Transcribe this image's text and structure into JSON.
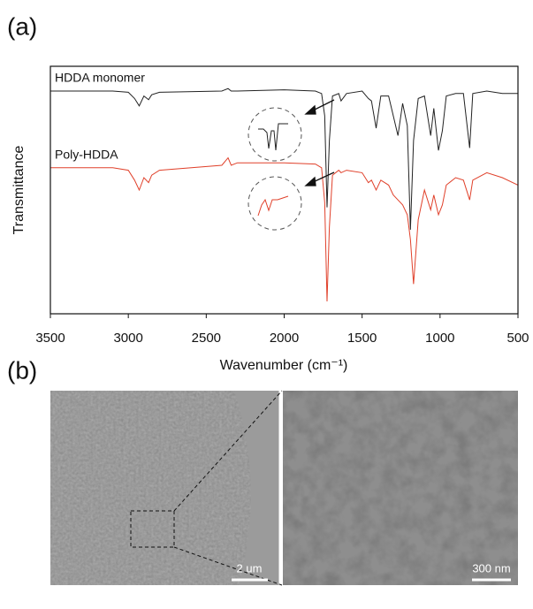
{
  "chart_data": {
    "type": "line",
    "x_label": "Wavenumber (cm⁻¹)",
    "y_label": "Transmittance",
    "xlim": [
      3500,
      500
    ],
    "ylim": [
      0,
      100
    ],
    "xticks": [
      3500,
      3000,
      2500,
      2000,
      1500,
      1000,
      500
    ],
    "x": [
      3500,
      3100,
      3000,
      2960,
      2930,
      2900,
      2870,
      2850,
      2800,
      2400,
      2360,
      2340,
      2300,
      2000,
      1800,
      1760,
      1740,
      1725,
      1710,
      1690,
      1650,
      1635,
      1600,
      1500,
      1460,
      1440,
      1410,
      1380,
      1330,
      1300,
      1270,
      1240,
      1210,
      1190,
      1170,
      1140,
      1100,
      1060,
      1040,
      1010,
      985,
      960,
      900,
      850,
      810,
      790,
      700,
      600,
      500
    ],
    "series": [
      {
        "name": "HDDA monomer",
        "color": "#222222",
        "values": [
          90,
          90,
          89.5,
          87,
          84,
          88,
          86.5,
          88.5,
          89.5,
          90,
          91,
          90,
          90,
          90.5,
          90,
          89,
          80,
          43,
          70,
          88,
          89,
          86,
          89,
          90,
          87,
          86,
          75,
          88,
          88,
          80,
          72,
          85,
          76,
          34,
          70,
          87,
          88,
          72,
          83,
          66,
          74,
          88,
          89,
          89,
          67,
          89,
          90,
          89,
          89
        ]
      },
      {
        "name": "Poly-HDDA",
        "color": "#e0402a",
        "values": [
          59,
          59,
          58,
          54,
          50,
          55,
          53,
          56,
          58,
          60,
          63,
          60,
          61,
          61,
          60.5,
          59,
          45,
          5,
          35,
          56,
          58,
          57,
          58,
          57,
          53,
          54,
          50,
          54,
          52,
          48,
          46,
          44,
          40,
          30,
          12,
          38,
          50,
          42,
          48,
          40,
          44,
          52,
          55,
          54,
          46,
          54,
          57,
          55,
          52
        ]
      }
    ]
  },
  "figure": {
    "panel_a": "(a)",
    "panel_b": "(b)",
    "scale_bar_left": "2 um",
    "scale_bar_right": "300 nm"
  }
}
